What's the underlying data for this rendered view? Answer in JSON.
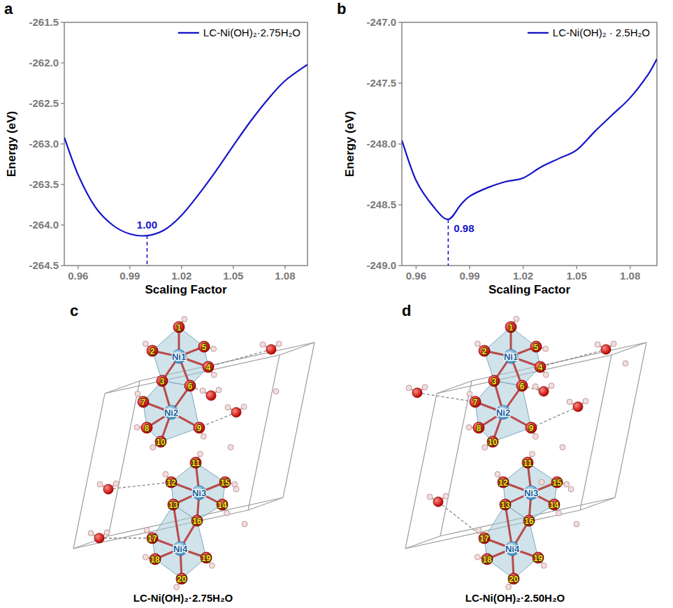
{
  "chart_data": [
    {
      "type": "line",
      "panel_label": "a",
      "x_label": "Scaling Factor",
      "y_label": "Energy (eV)",
      "xlim": [
        0.952,
        1.093
      ],
      "xticks": [
        0.96,
        0.99,
        1.02,
        1.05,
        1.08
      ],
      "ylim": [
        -264.5,
        -261.5
      ],
      "yticks": [
        -261.5,
        {
          "value": -262,
          "label": "-262.0"
        },
        -262.5,
        {
          "value": -263,
          "label": "-263.0"
        },
        -263.5,
        {
          "value": -264,
          "label": "-264.0"
        },
        -264.5
      ],
      "grid": false,
      "legend": "upper right",
      "series": [
        {
          "name": "LC-Ni(OH)₂·2.75H₂O",
          "color": "#1515c8",
          "x": [
            0.952,
            0.96,
            0.97,
            0.98,
            0.99,
            1.0,
            1.01,
            1.02,
            1.03,
            1.04,
            1.05,
            1.06,
            1.07,
            1.08,
            1.093
          ],
          "values": [
            -262.92,
            -263.38,
            -263.78,
            -264.0,
            -264.11,
            -264.13,
            -264.06,
            -263.88,
            -263.62,
            -263.33,
            -263.02,
            -262.72,
            -262.45,
            -262.22,
            -262.02
          ]
        }
      ],
      "annotations": [
        {
          "x": 1.0,
          "y": -264.13,
          "label": "1.00",
          "color": "#1515c8"
        }
      ]
    },
    {
      "type": "line",
      "panel_label": "b",
      "x_label": "Scaling Factor",
      "y_label": "Energy (eV)",
      "xlim": [
        0.952,
        1.095
      ],
      "xticks": [
        0.96,
        0.99,
        1.02,
        1.05,
        1.08
      ],
      "ylim": [
        -249,
        -247
      ],
      "yticks": [
        {
          "value": -247,
          "label": "-247.0"
        },
        -247.5,
        {
          "value": -248,
          "label": "-248.0"
        },
        -248.5,
        {
          "value": -249,
          "label": "-249.0"
        }
      ],
      "grid": false,
      "legend": "upper right",
      "series": [
        {
          "name": "LC-Ni(OH)₂ · 2.5H₂O",
          "color": "#1515c8",
          "x": [
            0.952,
            0.96,
            0.97,
            0.978,
            0.985,
            0.99,
            1.0,
            1.01,
            1.02,
            1.03,
            1.04,
            1.05,
            1.06,
            1.07,
            1.08,
            1.09,
            1.095
          ],
          "values": [
            -247.97,
            -248.3,
            -248.52,
            -248.62,
            -248.5,
            -248.43,
            -248.36,
            -248.31,
            -248.28,
            -248.19,
            -248.12,
            -248.05,
            -247.9,
            -247.76,
            -247.62,
            -247.43,
            -247.3
          ]
        }
      ],
      "annotations": [
        {
          "x": 0.978,
          "y": -248.62,
          "label": "0.98",
          "color": "#1515c8"
        }
      ]
    }
  ],
  "structures": [
    {
      "panel_label": "c",
      "caption": "LC-Ni(OH)₂·2.75H₂O",
      "metal_labels": [
        "Ni1",
        "Ni2",
        "Ni3",
        "Ni4"
      ],
      "oxygen_labels": [
        1,
        2,
        3,
        4,
        5,
        6,
        7,
        8,
        9,
        10,
        11,
        12,
        13,
        14,
        15,
        16,
        17,
        18,
        19,
        20
      ]
    },
    {
      "panel_label": "d",
      "caption": "LC-Ni(OH)₂·2.50H₂O",
      "metal_labels": [
        "Ni1",
        "Ni2",
        "Ni3",
        "Ni4"
      ],
      "oxygen_labels": [
        1,
        2,
        3,
        4,
        5,
        6,
        7,
        8,
        9,
        10,
        11,
        12,
        13,
        14,
        15,
        16,
        17,
        18,
        19,
        20
      ]
    }
  ]
}
